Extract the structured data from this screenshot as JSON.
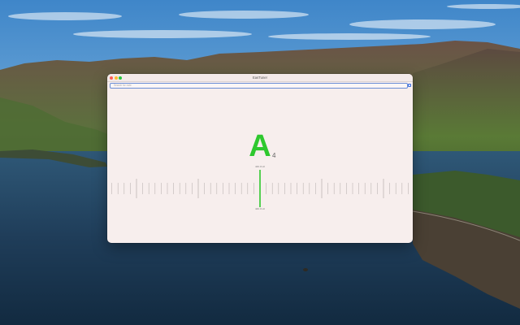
{
  "window": {
    "title": "EasTuner",
    "search_placeholder": "Search for note"
  },
  "tuner": {
    "note": "A",
    "octave": "4",
    "frequency": "440.0 Hz",
    "cents": "440.0 Hz",
    "needle_offset": 0,
    "accent_color": "#2ec82e"
  },
  "icons": {
    "close": "close-traffic-light",
    "minimize": "minimize-traffic-light",
    "maximize": "maximize-traffic-light",
    "search": "search-icon"
  }
}
